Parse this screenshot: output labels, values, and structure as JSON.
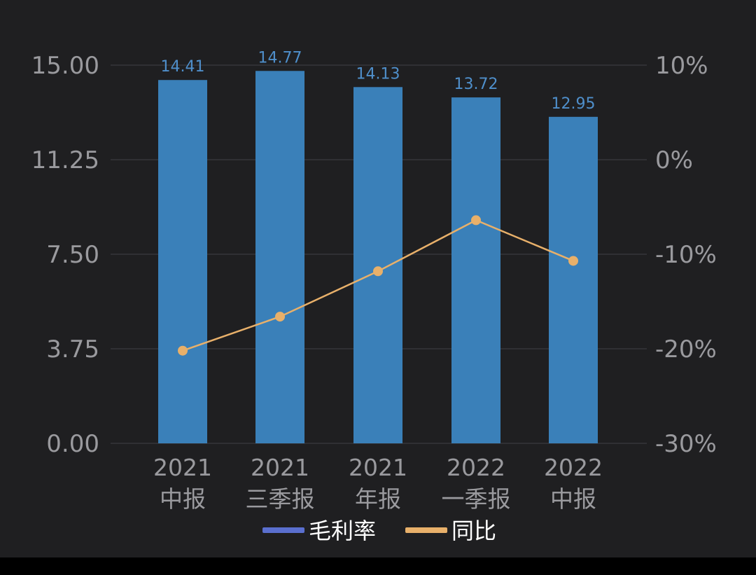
{
  "colors": {
    "background": "#1f1f21",
    "bar": "#3a80b9",
    "bar_label": "#4f8fcb",
    "line": "#e8b06a",
    "grid": "#3b3b40",
    "axis_text": "#9a9a9e",
    "legend_bar_swatch": "#5a6fcf",
    "legend_text": "#ffffff",
    "bottom_bar": "#000000"
  },
  "chart_data": {
    "type": "bar",
    "categories": [
      [
        "2021",
        "中报"
      ],
      [
        "2021",
        "三季报"
      ],
      [
        "2021",
        "年报"
      ],
      [
        "2022",
        "一季报"
      ],
      [
        "2022",
        "中报"
      ]
    ],
    "series": [
      {
        "name": "毛利率",
        "type": "bar",
        "axis": "left",
        "values": [
          14.41,
          14.77,
          14.13,
          13.72,
          12.95
        ]
      },
      {
        "name": "同比",
        "type": "line",
        "axis": "right",
        "values": [
          -20.2,
          -16.6,
          -11.8,
          -6.4,
          -10.7
        ]
      }
    ],
    "left_axis": {
      "ticks": [
        "15.00",
        "11.25",
        "7.50",
        "3.75",
        "0.00"
      ],
      "ylim": [
        0,
        15
      ]
    },
    "right_axis": {
      "ticks": [
        "10%",
        "0%",
        "-10%",
        "-20%",
        "-30%"
      ],
      "ylim": [
        -30,
        10
      ]
    },
    "grid": true,
    "legend_position": "bottom-center"
  }
}
